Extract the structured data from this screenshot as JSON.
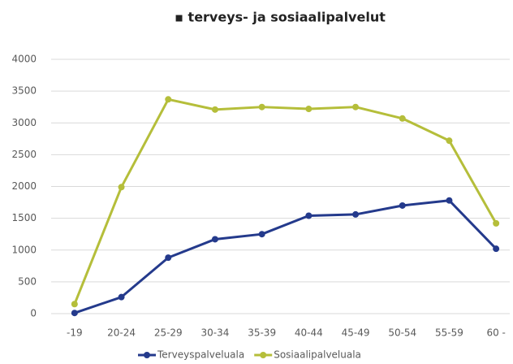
{
  "chart_data": {
    "type": "line",
    "title": "▪ terveys- ja sosiaalipalvelut",
    "categories": [
      "-19",
      "20-24",
      "25-29",
      "30-34",
      "35-39",
      "40-44",
      "45-49",
      "50-54",
      "55-59",
      "60 -"
    ],
    "series": [
      {
        "name": "Terveyspalveluala",
        "color": "#243a8c",
        "values": [
          10,
          260,
          880,
          1170,
          1250,
          1540,
          1560,
          1700,
          1780,
          1020
        ]
      },
      {
        "name": "Sosiaalipalveluala",
        "color": "#b5be3a",
        "values": [
          150,
          1990,
          3370,
          3210,
          3250,
          3220,
          3250,
          3070,
          2720,
          1420
        ]
      }
    ],
    "ylim": [
      0,
      4000
    ],
    "yticks": [
      0,
      500,
      1000,
      1500,
      2000,
      2500,
      3000,
      3500,
      4000
    ],
    "grid": true,
    "legend": "bottom"
  }
}
